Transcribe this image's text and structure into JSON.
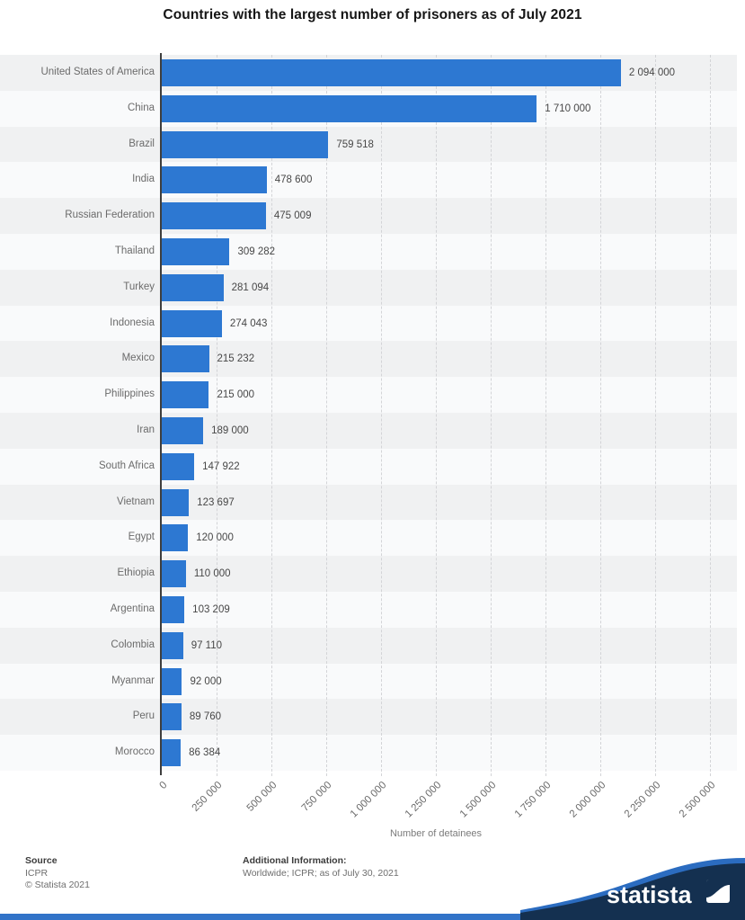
{
  "title": "Countries with the largest number of prisoners as of July 2021",
  "chart_data": {
    "type": "bar",
    "orientation": "horizontal",
    "title": "Countries with the largest number of prisoners as of July 2021",
    "xlabel": "Number of detainees",
    "ylabel": "",
    "xlim": [
      0,
      2500000
    ],
    "grid": "vertical-dashed",
    "bar_color": "#2d78d2",
    "categories": [
      "United States of America",
      "China",
      "Brazil",
      "India",
      "Russian Federation",
      "Thailand",
      "Turkey",
      "Indonesia",
      "Mexico",
      "Philippines",
      "Iran",
      "South Africa",
      "Vietnam",
      "Egypt",
      "Ethiopia",
      "Argentina",
      "Colombia",
      "Myanmar",
      "Peru",
      "Morocco"
    ],
    "values": [
      2094000,
      1710000,
      759518,
      478600,
      475009,
      309282,
      281094,
      274043,
      215232,
      215000,
      189000,
      147922,
      123697,
      120000,
      110000,
      103209,
      97110,
      92000,
      89760,
      86384
    ],
    "value_labels": [
      "2 094 000",
      "1 710 000",
      "759 518",
      "478 600",
      "475 009",
      "309 282",
      "281 094",
      "274 043",
      "215 232",
      "215 000",
      "189 000",
      "147 922",
      "123 697",
      "120 000",
      "110 000",
      "103 209",
      "97 110",
      "92 000",
      "89 760",
      "86 384"
    ],
    "x_ticks": [
      {
        "label": "0",
        "value": 0
      },
      {
        "label": "250 000",
        "value": 250000
      },
      {
        "label": "500 000",
        "value": 500000
      },
      {
        "label": "750 000",
        "value": 750000
      },
      {
        "label": "1 000 000",
        "value": 1000000
      },
      {
        "label": "1 250 000",
        "value": 1250000
      },
      {
        "label": "1 500 000",
        "value": 1500000
      },
      {
        "label": "1 750 000",
        "value": 1750000
      },
      {
        "label": "2 000 000",
        "value": 2000000
      },
      {
        "label": "2 250 000",
        "value": 2250000
      },
      {
        "label": "2 500 000",
        "value": 2500000
      }
    ]
  },
  "footer": {
    "source_label": "Source",
    "source_name": "ICPR",
    "copyright": "© Statista 2021",
    "additional_label": "Additional Information:",
    "additional_text": "Worldwide; ICPR; as of July 30, 2021"
  },
  "branding": {
    "logo_text": "statista",
    "navy_color": "#143050",
    "band_color": "#2b6cc0",
    "strip_color": "#3273c8"
  }
}
